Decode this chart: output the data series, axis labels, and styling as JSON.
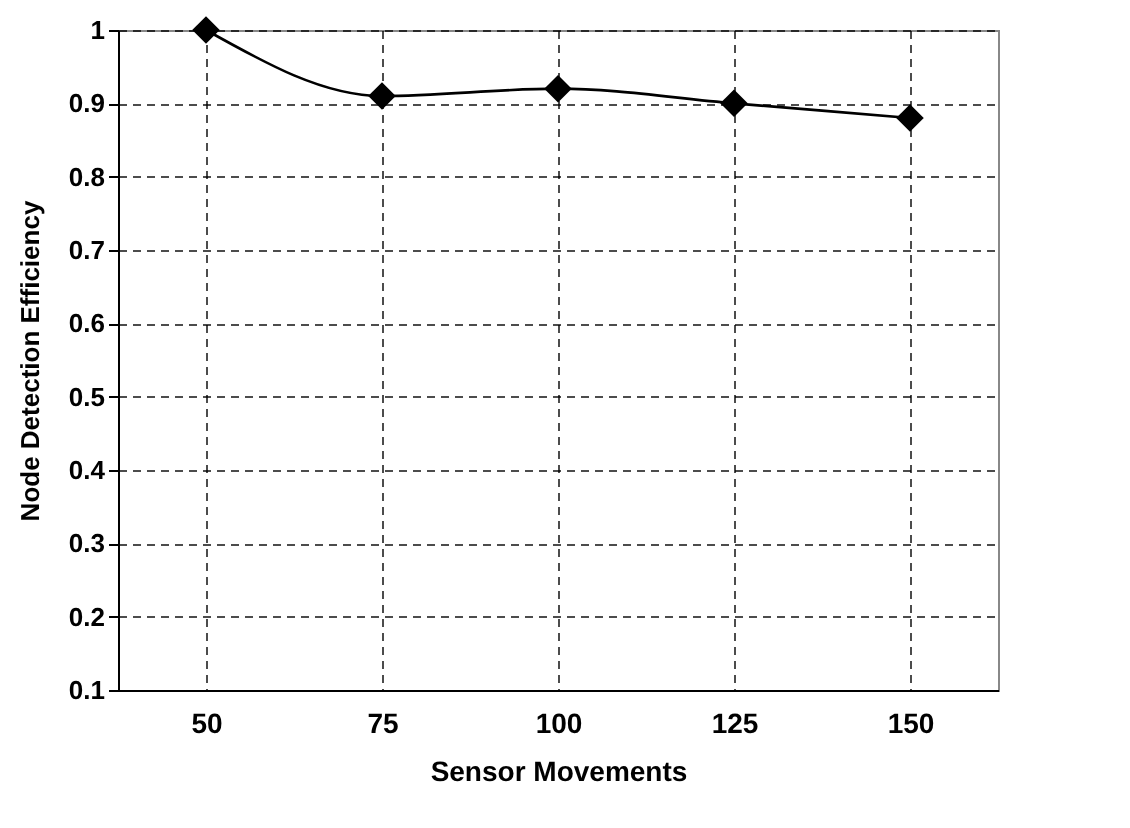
{
  "chart_data": {
    "type": "line",
    "xlabel": "Sensor Movements",
    "ylabel": "Node Detection Efficiency",
    "categories": [
      "50",
      "75",
      "100",
      "125",
      "150"
    ],
    "series": [
      {
        "color": "#000000",
        "values": [
          1,
          0.91,
          0.92,
          0.9,
          0.88
        ]
      }
    ],
    "ylim": [
      0.1,
      1
    ],
    "yticks": [
      0.1,
      0.2,
      0.3,
      0.4,
      0.5,
      0.6,
      0.7,
      0.8,
      0.9,
      1
    ],
    "grid": true,
    "marker": "diamond",
    "line_style": "solid"
  }
}
